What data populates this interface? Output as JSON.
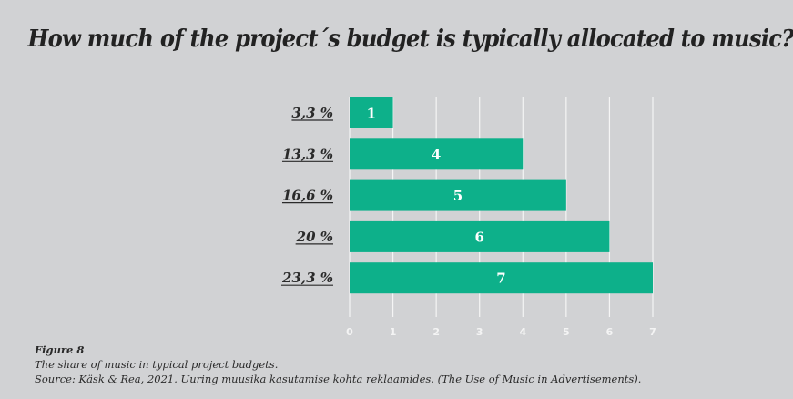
{
  "chart_data": {
    "type": "bar",
    "orientation": "horizontal",
    "title": "How much of the project´s budget is typically allocated to music?",
    "categories": [
      "3,3 %",
      "13,3 %",
      "16,6 %",
      "20 %",
      "23,3 %"
    ],
    "values": [
      1,
      4,
      5,
      6,
      7
    ],
    "data_labels": [
      "1",
      "4",
      "5",
      "6",
      "7"
    ],
    "xlim": [
      0,
      7
    ],
    "xticks": [
      "0",
      "1",
      "2",
      "3",
      "4",
      "5",
      "6",
      "7"
    ],
    "xlabel": "",
    "ylabel": "",
    "grid": true,
    "bar_color": "#0db08a",
    "background_color": "#d1d2d4"
  },
  "caption": {
    "figure": "Figure 8",
    "description": "The share of music in typical project budgets.",
    "source": "Source: Käsk & Rea, 2021. Uuring muusika kasutamise kohta reklaamides. (The Use of Music in Advertisements)."
  }
}
